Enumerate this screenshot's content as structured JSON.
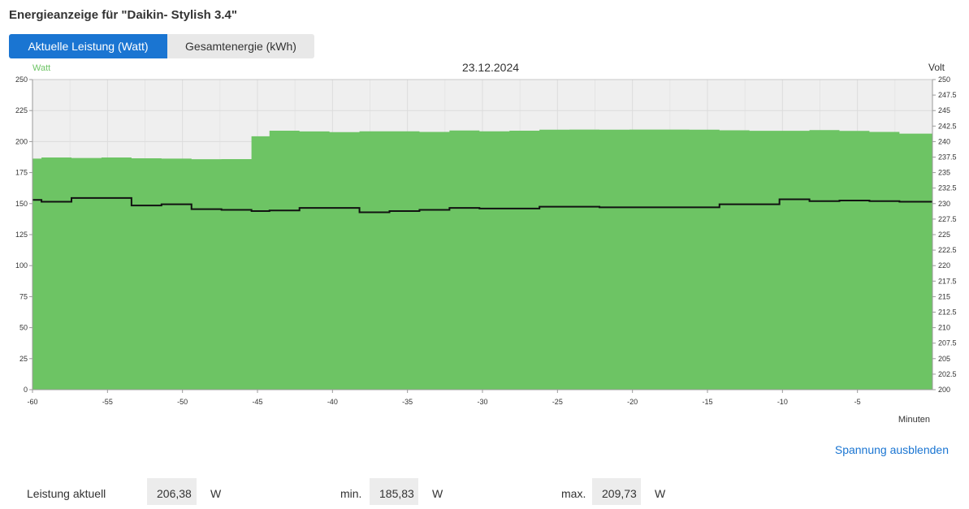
{
  "page": {
    "title": "Energieanzeige für \"Daikin- Stylish 3.4\""
  },
  "tabs": [
    {
      "label": "Aktuelle Leistung (Watt)",
      "active": true
    },
    {
      "label": "Gesamtenergie (kWh)",
      "active": false
    }
  ],
  "colors": {
    "accent": "#1a75d2",
    "power_fill": "#6dc464",
    "voltage_line": "#111111",
    "left_axis_label": "#6dc464"
  },
  "chart_data": {
    "type": "area",
    "title": "23.12.2024",
    "left_axis_label": "Watt",
    "right_axis_label": "Volt",
    "xlabel": "Minuten",
    "xlim": [
      -60,
      0
    ],
    "ylim_left": [
      0,
      250
    ],
    "ylim_right": [
      200,
      250
    ],
    "x_ticks": [
      "-60",
      "-55",
      "-50",
      "-45",
      "-40",
      "-35",
      "-30",
      "-25",
      "-20",
      "-15",
      "-10",
      "-5"
    ],
    "y_left_ticks": [
      "0",
      "25",
      "50",
      "75",
      "100",
      "125",
      "150",
      "175",
      "200",
      "225",
      "250"
    ],
    "y_right_ticks": [
      "200",
      "202.5",
      "205",
      "207.5",
      "210",
      "212.5",
      "215",
      "217.5",
      "220",
      "222.5",
      "225",
      "227.5",
      "230",
      "232.5",
      "235",
      "237.5",
      "240",
      "242.5",
      "245",
      "247.5",
      "250"
    ],
    "grid": true,
    "series": [
      {
        "unit": "W",
        "type": "step-area",
        "x": [
          -60,
          -59.4,
          -57.4,
          -55.4,
          -53.4,
          -51.4,
          -49.4,
          -47.4,
          -45.4,
          -44.2,
          -42.2,
          -40.2,
          -38.2,
          -36.2,
          -34.2,
          -32.2,
          -30.2,
          -28.2,
          -26.2,
          -24.2,
          -22.2,
          -20.2,
          -18.2,
          -16.2,
          -14.2,
          -12.2,
          -10.2,
          -8.2,
          -6.2,
          -4.2,
          -2.2,
          0
        ],
        "values": [
          186.3,
          187.2,
          186.8,
          187.2,
          186.5,
          186.3,
          185.8,
          185.9,
          204.3,
          208.8,
          208.2,
          207.6,
          208.3,
          208.3,
          207.8,
          208.9,
          208.3,
          208.8,
          209.6,
          209.7,
          209.6,
          209.7,
          209.7,
          209.6,
          209.1,
          208.7,
          208.7,
          209.3,
          208.6,
          207.8,
          206.4,
          206.4
        ]
      },
      {
        "unit": "V",
        "type": "step-line",
        "x": [
          -60,
          -59.4,
          -57.4,
          -53.4,
          -51.4,
          -49.4,
          -47.4,
          -45.4,
          -44.2,
          -42.2,
          -38.2,
          -36.2,
          -34.2,
          -32.2,
          -30.2,
          -26.2,
          -22.2,
          -18.2,
          -14.2,
          -10.2,
          -8.2,
          -6.2,
          -4.2,
          -2.2,
          0
        ],
        "values": [
          230.6,
          230.3,
          230.9,
          229.7,
          229.9,
          229.1,
          229.0,
          228.8,
          228.9,
          229.3,
          228.6,
          228.8,
          229.0,
          229.3,
          229.2,
          229.5,
          229.4,
          229.4,
          229.9,
          230.7,
          230.4,
          230.5,
          230.4,
          230.3,
          230.3
        ]
      }
    ]
  },
  "voltage_toggle": {
    "label": "Spannung ausblenden"
  },
  "stats": {
    "current": {
      "label": "Leistung aktuell",
      "value": "206,38",
      "unit": "W"
    },
    "min": {
      "label": "min.",
      "value": "185,83",
      "unit": "W"
    },
    "max": {
      "label": "max.",
      "value": "209,73",
      "unit": "W"
    }
  }
}
